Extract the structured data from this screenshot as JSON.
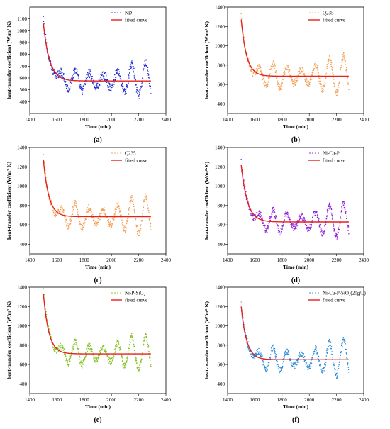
{
  "figure": {
    "axes": {
      "xlabel": "Time (min)",
      "ylabel": "heat-transfer coefficient (W/m²·K)"
    }
  },
  "chart_data": [
    {
      "type": "scatter",
      "panel_label": "(a)",
      "xlim": [
        1400,
        2400
      ],
      "ylim": [
        300,
        1200
      ],
      "xticks": [
        1400,
        1600,
        1800,
        2000,
        2200,
        2400
      ],
      "yticks": [
        400,
        500,
        600,
        700,
        800,
        900,
        1000,
        1100
      ],
      "legend_position": "top-right",
      "series": [
        {
          "name": "ND",
          "kind": "scatter",
          "color": "#1f2bd1",
          "model": {
            "a0": 1060,
            "plateau": 575,
            "tau": 45,
            "x0": 1500,
            "x1": 2290,
            "amplitude": 120
          }
        },
        {
          "name": "fitted curve",
          "kind": "line",
          "color": "#e8201b"
        }
      ]
    },
    {
      "type": "scatter",
      "panel_label": "(b)",
      "xlim": [
        1400,
        2400
      ],
      "ylim": [
        300,
        1400
      ],
      "xticks": [
        1400,
        1600,
        1800,
        2000,
        2200,
        2400
      ],
      "yticks": [
        400,
        600,
        800,
        1000,
        1200,
        1400
      ],
      "legend_position": "top-right",
      "series": [
        {
          "name": "Q235",
          "kind": "scatter",
          "color": "#f2a057",
          "model": {
            "a0": 1270,
            "plateau": 685,
            "tau": 40,
            "x0": 1500,
            "x1": 2290,
            "amplitude": 170
          }
        },
        {
          "name": "fitted curve",
          "kind": "line",
          "color": "#e8201b"
        }
      ]
    },
    {
      "type": "scatter",
      "panel_label": "(c)",
      "xlim": [
        1400,
        2400
      ],
      "ylim": [
        300,
        1400
      ],
      "xticks": [
        1400,
        1600,
        1800,
        2000,
        2200,
        2400
      ],
      "yticks": [
        400,
        600,
        800,
        1000,
        1200,
        1400
      ],
      "legend_position": "top-right",
      "series": [
        {
          "name": "Q235",
          "kind": "scatter",
          "color": "#f2a057",
          "model": {
            "a0": 1270,
            "plateau": 685,
            "tau": 40,
            "x0": 1500,
            "x1": 2290,
            "amplitude": 170
          }
        },
        {
          "name": "fitted curve",
          "kind": "line",
          "color": "#e8201b"
        }
      ]
    },
    {
      "type": "scatter",
      "panel_label": "(d)",
      "xlim": [
        1400,
        2400
      ],
      "ylim": [
        300,
        1400
      ],
      "xticks": [
        1400,
        1600,
        1800,
        2000,
        2200,
        2400
      ],
      "yticks": [
        400,
        600,
        800,
        1000,
        1200,
        1400
      ],
      "legend_position": "top-right",
      "series": [
        {
          "name": "Ni-Cu-P",
          "kind": "scatter",
          "color": "#8f1ed8",
          "model": {
            "a0": 1220,
            "plateau": 630,
            "tau": 45,
            "x0": 1500,
            "x1": 2290,
            "amplitude": 150
          }
        },
        {
          "name": "fitted curve",
          "kind": "line",
          "color": "#e8201b"
        }
      ]
    },
    {
      "type": "scatter",
      "panel_label": "(e)",
      "xlim": [
        1400,
        2400
      ],
      "ylim": [
        300,
        1400
      ],
      "xticks": [
        1400,
        1600,
        1800,
        2000,
        2200,
        2400
      ],
      "yticks": [
        400,
        600,
        800,
        1000,
        1200,
        1400
      ],
      "legend_position": "top-right",
      "series": [
        {
          "name": "Ni-P-SiO₂",
          "kind": "scatter",
          "color": "#7ec21e",
          "model": {
            "a0": 1330,
            "plateau": 710,
            "tau": 40,
            "x0": 1500,
            "x1": 2290,
            "amplitude": 160
          }
        },
        {
          "name": "fitted curve",
          "kind": "line",
          "color": "#e8201b"
        }
      ]
    },
    {
      "type": "scatter",
      "panel_label": "(f)",
      "xlim": [
        1400,
        2400
      ],
      "ylim": [
        300,
        1400
      ],
      "xticks": [
        1400,
        1600,
        1800,
        2000,
        2200,
        2400
      ],
      "yticks": [
        400,
        600,
        800,
        1000,
        1200,
        1400
      ],
      "legend_position": "top-right",
      "series": [
        {
          "name": "Ni-Cu-P-SiO₂(20g/L)",
          "kind": "scatter",
          "color": "#2a8ad8",
          "model": {
            "a0": 1200,
            "plateau": 650,
            "tau": 40,
            "x0": 1500,
            "x1": 2290,
            "amplitude": 160
          }
        },
        {
          "name": "fitted curve",
          "kind": "line",
          "color": "#e8201b"
        }
      ]
    }
  ]
}
